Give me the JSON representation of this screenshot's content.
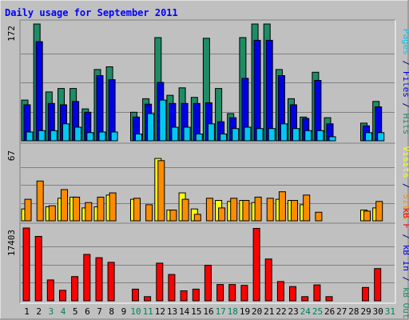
{
  "chart_data": {
    "type": "bar",
    "title": "Daily usage for September 2011",
    "days": [
      1,
      2,
      3,
      4,
      5,
      6,
      7,
      8,
      9,
      10,
      11,
      12,
      13,
      14,
      15,
      16,
      17,
      18,
      19,
      20,
      21,
      22,
      23,
      24,
      25,
      26,
      27,
      28,
      29,
      30,
      31
    ],
    "weekend_days": [
      3,
      4,
      10,
      11,
      17,
      18,
      24,
      25,
      31
    ],
    "panels": [
      {
        "id": "top",
        "max": 172,
        "max_label": "172",
        "side_label": {
          "pages": "Pages",
          "sep1": " / ",
          "files": "Files",
          "sep2": " / ",
          "hits": "Hits"
        },
        "series": [
          {
            "name": "Hits",
            "color": "#1e8c64",
            "values": [
              60,
              172,
              72,
              77,
              77,
              47,
              105,
              109,
              0,
              42,
              62,
              152,
              67,
              78,
              64,
              151,
              77,
              40,
              152,
              172,
              172,
              105,
              62,
              35,
              101,
              34,
              0,
              0,
              26,
              58,
              0
            ]
          },
          {
            "name": "Files",
            "color": "#0000e6",
            "values": [
              53,
              146,
              55,
              53,
              58,
              42,
              96,
              90,
              0,
              35,
              54,
              86,
              55,
              55,
              55,
              56,
              28,
              34,
              92,
              148,
              148,
              96,
              53,
              33,
              89,
              25,
              0,
              0,
              22,
              50,
              0
            ]
          },
          {
            "name": "Pages",
            "color": "#00c8f0",
            "values": [
              13,
              15,
              15,
              25,
              20,
              12,
              13,
              13,
              0,
              10,
              40,
              60,
              20,
              20,
              10,
              25,
              10,
              18,
              20,
              18,
              18,
              25,
              18,
              15,
              15,
              6,
              0,
              0,
              12,
              12,
              0
            ]
          }
        ]
      },
      {
        "id": "mid",
        "max": 67,
        "max_label": "67",
        "side_label": {
          "visits": "Visits",
          "sep1": " / ",
          "sites": "Sites"
        },
        "series": [
          {
            "name": "Visits",
            "color": "#ffff00",
            "values": [
              11,
              0,
              13,
              21,
              22,
              12,
              13,
              24,
              0,
              20,
              0,
              58,
              10,
              26,
              11,
              0,
              19,
              18,
              19,
              17,
              0,
              20,
              19,
              15,
              0,
              0,
              0,
              0,
              10,
              12,
              0
            ]
          },
          {
            "name": "Sites",
            "color": "#ff8c00",
            "values": [
              20,
              37,
              14,
              29,
              22,
              17,
              22,
              26,
              0,
              21,
              15,
              56,
              10,
              20,
              6,
              21,
              12,
              21,
              19,
              22,
              21,
              27,
              19,
              24,
              8,
              0,
              0,
              0,
              9,
              18,
              0
            ]
          }
        ]
      },
      {
        "id": "bottom",
        "max": 17403,
        "max_label": "17403",
        "side_label": {
          "kbf": "kB F",
          "sep1": " / ",
          "kbin": "kB In",
          "sep2": " / ",
          "kbout": "kB Out"
        },
        "series": [
          {
            "name": "kB F",
            "color": "#ff0000",
            "values": [
              17403,
              15400,
              5000,
              2500,
              5800,
              11100,
              10300,
              9200,
              0,
              2800,
              1000,
              9000,
              6300,
              2400,
              2800,
              8500,
              3900,
              3900,
              3700,
              17300,
              10000,
              4600,
              3400,
              1000,
              3800,
              1000,
              0,
              0,
              3200,
              7700,
              0
            ]
          }
        ]
      }
    ]
  },
  "colors": {
    "background": "#c0c0c0",
    "border": "#000080",
    "title": "#0000ff",
    "weekday_label": "#000000",
    "weekend_label": "#00805c",
    "pages": "#00c8f0",
    "files": "#0000e6",
    "hits": "#1e8c64",
    "visits": "#ffff00",
    "sites": "#ff8c00",
    "kbf": "#ff0000",
    "kbin": "#0000e6",
    "kbout": "#1e8c64",
    "separator": "#000080"
  }
}
